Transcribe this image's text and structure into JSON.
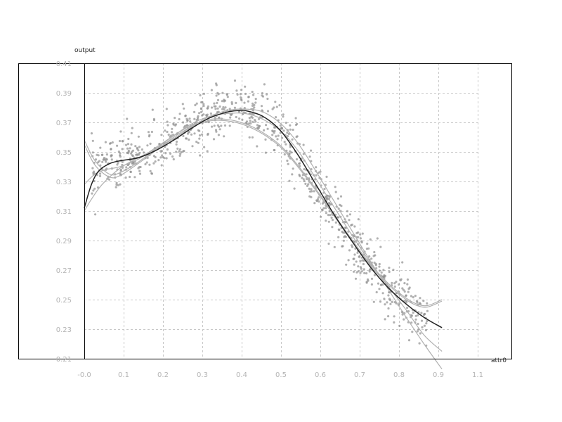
{
  "chart_data": {
    "type": "scatter",
    "title": "",
    "xlabel": "attr0",
    "ylabel": "output",
    "xlim": [
      0.0,
      1.1
    ],
    "ylim": [
      0.21,
      0.41
    ],
    "grid": true,
    "x_tick_labels": [
      "-0.0",
      "0.1",
      "0.2",
      "0.3",
      "0.4",
      "0.5",
      "0.6",
      "0.7",
      "0.8",
      "0.9",
      "1.1"
    ],
    "y_tick_labels": [
      "0.41",
      "0.39",
      "0.37",
      "0.35",
      "0.33",
      "0.31",
      "0.29",
      "0.27",
      "0.25",
      "0.23",
      "0.21"
    ],
    "colors": {
      "points": "#909090",
      "fit_line": "#222222",
      "band_lines": "#b0b0b0",
      "grid": "#c8c8c8",
      "frame": "#000000"
    },
    "fit_curve": {
      "x": [
        0.0,
        0.02,
        0.04,
        0.07,
        0.1,
        0.15,
        0.2,
        0.25,
        0.3,
        0.35,
        0.4,
        0.43,
        0.45,
        0.5,
        0.55,
        0.6,
        0.65,
        0.7,
        0.75,
        0.8,
        0.85,
        0.9,
        0.95,
        1.0
      ],
      "y": [
        0.312,
        0.328,
        0.337,
        0.342,
        0.344,
        0.346,
        0.351,
        0.358,
        0.366,
        0.373,
        0.377,
        0.378,
        0.378,
        0.374,
        0.364,
        0.347,
        0.327,
        0.307,
        0.289,
        0.272,
        0.258,
        0.247,
        0.238,
        0.231
      ]
    },
    "band_curves": [
      {
        "x": [
          0.0,
          0.03,
          0.07,
          0.1,
          0.15,
          0.2,
          0.25,
          0.3,
          0.35,
          0.4,
          0.45,
          0.5,
          0.55,
          0.6,
          0.65,
          0.7,
          0.75,
          0.8,
          0.85,
          0.9,
          0.93,
          0.96,
          1.0
        ],
        "y": [
          0.358,
          0.344,
          0.335,
          0.336,
          0.343,
          0.352,
          0.361,
          0.368,
          0.372,
          0.372,
          0.369,
          0.363,
          0.354,
          0.34,
          0.324,
          0.307,
          0.29,
          0.274,
          0.261,
          0.251,
          0.247,
          0.246,
          0.25
        ]
      },
      {
        "x": [
          0.0,
          0.03,
          0.07,
          0.1,
          0.15,
          0.2,
          0.25,
          0.3,
          0.35,
          0.4,
          0.45,
          0.5,
          0.55,
          0.6,
          0.65,
          0.7,
          0.75,
          0.8,
          0.85,
          0.9,
          0.93,
          0.96,
          1.0
        ],
        "y": [
          0.355,
          0.341,
          0.333,
          0.334,
          0.342,
          0.351,
          0.36,
          0.367,
          0.371,
          0.371,
          0.368,
          0.362,
          0.353,
          0.339,
          0.323,
          0.306,
          0.289,
          0.273,
          0.26,
          0.25,
          0.246,
          0.245,
          0.249
        ]
      },
      {
        "x": [
          0.0,
          0.03,
          0.06,
          0.1,
          0.15,
          0.2,
          0.25,
          0.3,
          0.35,
          0.4,
          0.45,
          0.5,
          0.55,
          0.6,
          0.65,
          0.7,
          0.75,
          0.8,
          0.85,
          0.9,
          0.95,
          1.0
        ],
        "y": [
          0.328,
          0.335,
          0.338,
          0.34,
          0.345,
          0.353,
          0.361,
          0.369,
          0.374,
          0.376,
          0.376,
          0.372,
          0.364,
          0.35,
          0.331,
          0.312,
          0.293,
          0.275,
          0.259,
          0.243,
          0.226,
          0.215
        ]
      },
      {
        "x": [
          0.0,
          0.02,
          0.05,
          0.1,
          0.15,
          0.2,
          0.25,
          0.3,
          0.35,
          0.4,
          0.45,
          0.5,
          0.55,
          0.6,
          0.65,
          0.7,
          0.75,
          0.8,
          0.85,
          0.9,
          0.95,
          1.0
        ],
        "y": [
          0.31,
          0.318,
          0.328,
          0.339,
          0.346,
          0.352,
          0.359,
          0.367,
          0.374,
          0.378,
          0.379,
          0.377,
          0.369,
          0.355,
          0.336,
          0.316,
          0.296,
          0.276,
          0.257,
          0.238,
          0.22,
          0.203
        ]
      }
    ],
    "scatter": {
      "x_range": [
        0.02,
        0.96
      ],
      "count": 900,
      "trend_x": [
        0.02,
        0.05,
        0.1,
        0.15,
        0.2,
        0.25,
        0.3,
        0.35,
        0.4,
        0.43,
        0.46,
        0.5,
        0.55,
        0.6,
        0.65,
        0.7,
        0.75,
        0.8,
        0.85,
        0.9,
        0.96
      ],
      "trend_y": [
        0.338,
        0.341,
        0.344,
        0.346,
        0.351,
        0.358,
        0.366,
        0.373,
        0.378,
        0.379,
        0.378,
        0.374,
        0.364,
        0.347,
        0.327,
        0.307,
        0.289,
        0.272,
        0.258,
        0.247,
        0.237
      ],
      "spread": 0.009
    }
  }
}
